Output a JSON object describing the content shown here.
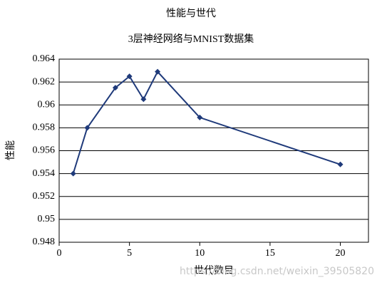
{
  "chart_data": {
    "type": "line",
    "title": "性能与世代",
    "subtitle": "3层神经网络与MNIST数据集",
    "x_label": "世代数目",
    "y_label": "性能",
    "x": [
      1,
      2,
      4,
      5,
      6,
      7,
      10,
      20
    ],
    "series": [
      {
        "color": "#1f3a7a",
        "values": [
          0.954,
          0.958,
          0.9615,
          0.9625,
          0.9605,
          0.9629,
          0.9589,
          0.9548
        ]
      }
    ],
    "xlim": [
      0,
      22
    ],
    "xticks": [
      0,
      5,
      10,
      15,
      20
    ],
    "ylim": [
      0.948,
      0.964
    ],
    "yticks": [
      0.948,
      0.95,
      0.952,
      0.954,
      0.956,
      0.958,
      0.96,
      0.962,
      0.964
    ],
    "grid": true,
    "watermark": "https://blog.csdn.net/weixin_39505820"
  }
}
